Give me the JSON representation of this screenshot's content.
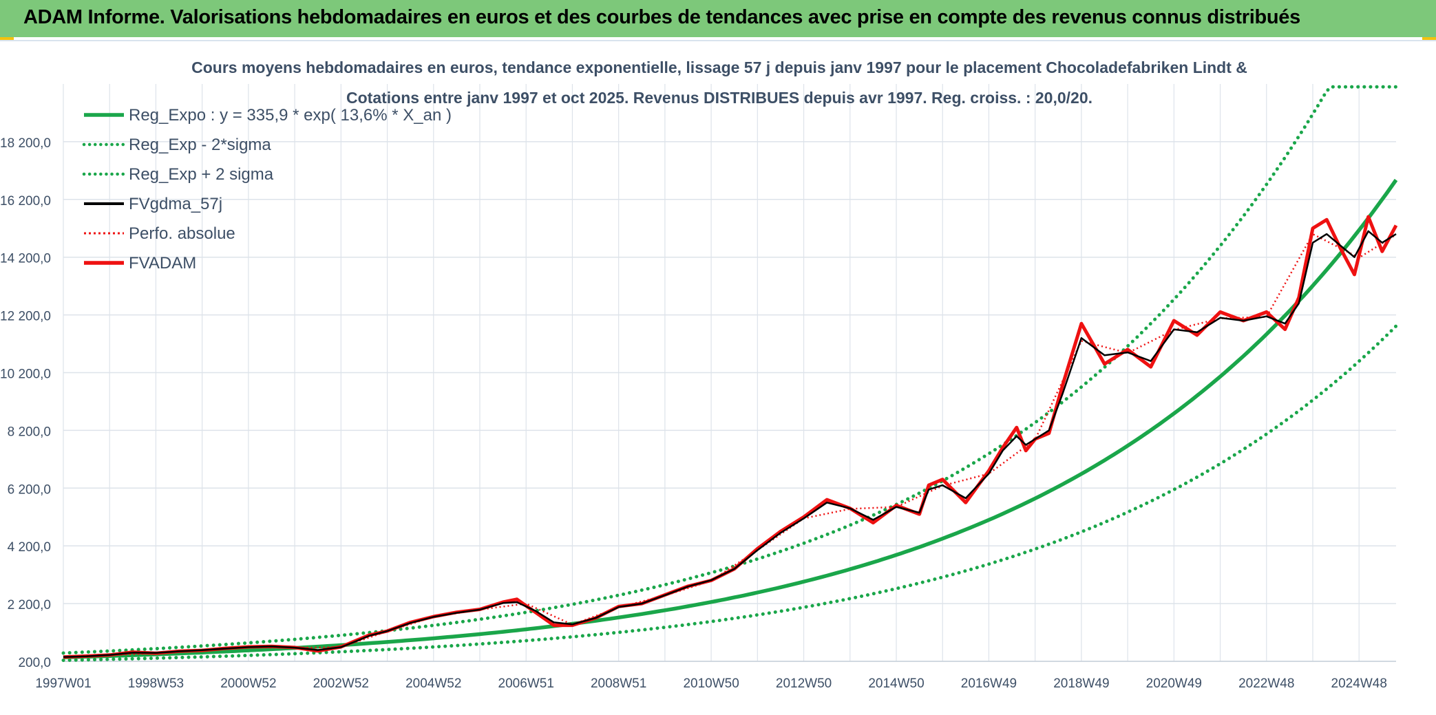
{
  "banner": {
    "title": "ADAM Informe. Valorisations hebdomadaires en euros et des courbes de tendances avec prise en compte des revenus connus distribués"
  },
  "colors": {
    "banner_bg": "#7dc87a",
    "reg_green": "#1aa64a",
    "red": "#ee1111",
    "black": "#000000",
    "grid": "#dde3ea",
    "axis_text": "#3d4f66"
  },
  "chart_data": {
    "type": "line",
    "title_line1": "Cours moyens hebdomadaires en euros, tendance exponentielle, lissage 57 j depuis janv 1997 pour le placement Chocoladefabriken  Lindt &",
    "title_line2": "Cotations entre janv 1997 et oct 2025. Revenus DISTRIBUES depuis avr 1997. Reg. croiss. : 20,0/20.",
    "xlabel": "",
    "ylabel": "",
    "x_unit": "years since 1997W01",
    "xlim": [
      0,
      28.8
    ],
    "ylim": [
      200,
      20200
    ],
    "y_ticks": [
      200,
      2200,
      4200,
      6200,
      8200,
      10200,
      12200,
      14200,
      16200,
      18200
    ],
    "y_tick_labels": [
      "200,0",
      "2 200,0",
      "4 200,0",
      "6 200,0",
      "8 200,0",
      "10 200,0",
      "12 200,0",
      "14 200,0",
      "16 200,0",
      "18 200,0"
    ],
    "x_ticks": [
      0,
      2,
      4,
      6,
      8,
      10,
      12,
      14,
      16,
      18,
      20,
      22,
      24,
      26,
      28
    ],
    "x_tick_labels": [
      "1997W01",
      "1998W53",
      "2000W52",
      "2002W52",
      "2004W52",
      "2006W51",
      "2008W51",
      "2010W50",
      "2012W50",
      "2014W50",
      "2016W49",
      "2018W49",
      "2020W49",
      "2022W48",
      "2024W48"
    ],
    "grid": true,
    "legend_position": "top-left",
    "legend": [
      {
        "label": "Reg_Expo : y = 335,9 * exp( 13,6% *  X_an )",
        "color": "#1aa64a",
        "style": "solid-thick"
      },
      {
        "label": "Reg_Exp - 2*sigma",
        "color": "#1aa64a",
        "style": "dotted"
      },
      {
        "label": "Reg_Exp + 2 sigma",
        "color": "#1aa64a",
        "style": "dotted"
      },
      {
        "label": "FVgdma_57j",
        "color": "#000000",
        "style": "solid"
      },
      {
        "label": "Perfo. absolue",
        "color": "#ee1111",
        "style": "dotted"
      },
      {
        "label": "FVADAM",
        "color": "#ee1111",
        "style": "solid-thick"
      }
    ],
    "regression": {
      "a": 335.9,
      "b": 0.136,
      "lower_factor": 0.7,
      "upper_factor": 1.45,
      "upper_cap": 20100
    },
    "series": [
      {
        "name": "FVADAM",
        "x": [
          0,
          0.5,
          1,
          1.5,
          2,
          2.5,
          3,
          3.5,
          4,
          4.5,
          5,
          5.5,
          6,
          6.3,
          6.6,
          7,
          7.5,
          8,
          8.5,
          9,
          9.5,
          9.8,
          10.2,
          10.6,
          11,
          11.5,
          12,
          12.5,
          13,
          13.5,
          14,
          14.5,
          15,
          15.5,
          16,
          16.5,
          17,
          17.5,
          18,
          18.5,
          18.7,
          19,
          19.5,
          20,
          20.3,
          20.6,
          20.8,
          21,
          21.3,
          21.6,
          22,
          22.5,
          23,
          23.5,
          24,
          24.5,
          25,
          25.5,
          26,
          26.4,
          26.7,
          27,
          27.3,
          27.6,
          27.9,
          28.2,
          28.5,
          28.8
        ],
        "values": [
          350,
          380,
          420,
          520,
          480,
          550,
          580,
          650,
          700,
          720,
          680,
          560,
          700,
          900,
          1100,
          1250,
          1550,
          1750,
          1900,
          2000,
          2250,
          2350,
          1900,
          1450,
          1450,
          1700,
          2100,
          2200,
          2500,
          2800,
          3000,
          3400,
          4100,
          4700,
          5200,
          5800,
          5500,
          5000,
          5600,
          5300,
          6300,
          6500,
          5700,
          6800,
          7600,
          8300,
          7500,
          7900,
          8100,
          9800,
          11900,
          10500,
          11000,
          10400,
          12000,
          11500,
          12300,
          12000,
          12300,
          11700,
          12800,
          15200,
          15500,
          14500,
          13600,
          15600,
          14400,
          15300
        ]
      },
      {
        "name": "FVgdma_57j",
        "x": [
          0,
          0.5,
          1,
          1.5,
          2,
          2.5,
          3,
          3.5,
          4,
          4.5,
          5,
          5.5,
          6,
          6.3,
          6.6,
          7,
          7.5,
          8,
          8.5,
          9,
          9.5,
          9.8,
          10.2,
          10.6,
          11,
          11.5,
          12,
          12.5,
          13,
          13.5,
          14,
          14.5,
          15,
          15.5,
          16,
          16.5,
          17,
          17.5,
          18,
          18.5,
          18.7,
          19,
          19.5,
          20,
          20.3,
          20.6,
          20.8,
          21,
          21.3,
          21.6,
          22,
          22.5,
          23,
          23.5,
          24,
          24.5,
          25,
          25.5,
          26,
          26.4,
          26.7,
          27,
          27.3,
          27.6,
          27.9,
          28.2,
          28.5,
          28.8
        ],
        "values": [
          350,
          375,
          420,
          500,
          490,
          545,
          585,
          640,
          690,
          715,
          675,
          590,
          690,
          880,
          1080,
          1250,
          1530,
          1740,
          1880,
          1990,
          2220,
          2250,
          1950,
          1550,
          1480,
          1700,
          2080,
          2200,
          2490,
          2790,
          3010,
          3400,
          4050,
          4650,
          5150,
          5700,
          5500,
          5100,
          5550,
          5350,
          6150,
          6300,
          5850,
          6700,
          7500,
          8000,
          7700,
          7900,
          8200,
          9500,
          11400,
          10800,
          10900,
          10600,
          11700,
          11600,
          12100,
          12000,
          12150,
          11900,
          12600,
          14700,
          15000,
          14600,
          14200,
          15100,
          14700,
          15000
        ]
      },
      {
        "name": "Perfo. absolue",
        "x": [
          0,
          1,
          2,
          3,
          4,
          5,
          6,
          7,
          8,
          9,
          10,
          11,
          12,
          13,
          14,
          15,
          16,
          17,
          18,
          19,
          20,
          21,
          22,
          23,
          24,
          25,
          26,
          27,
          28,
          28.8
        ],
        "values": [
          350,
          415,
          480,
          575,
          685,
          670,
          690,
          1240,
          1740,
          1990,
          2200,
          1470,
          2070,
          2480,
          2990,
          4050,
          5150,
          5480,
          5550,
          6280,
          6700,
          7880,
          11300,
          10880,
          11680,
          12080,
          12130,
          15000,
          14180,
          14980
        ]
      }
    ]
  }
}
